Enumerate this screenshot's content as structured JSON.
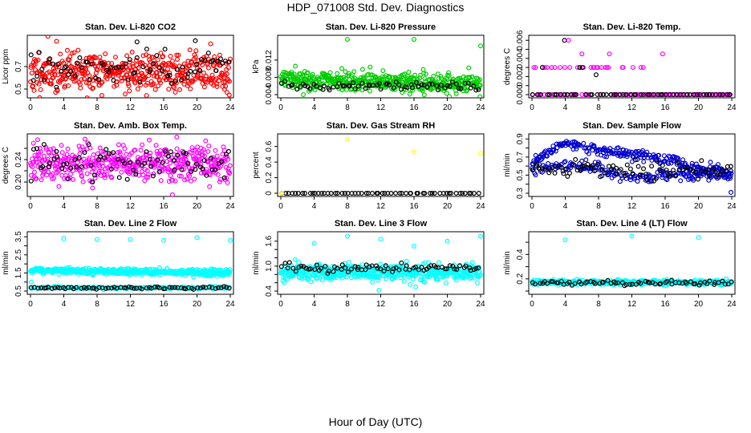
{
  "figure": {
    "title": "HDP_071008  Std. Dev. Diagnostics",
    "xlabel": "Hour of Day (UTC)"
  },
  "chart_data": [
    {
      "type": "scatter",
      "title": "Stan. Dev. Li-820 CO2",
      "ylabel": "Licor ppm",
      "xlim": [
        0,
        24
      ],
      "ylim": [
        0.45,
        0.95
      ],
      "xticks": [
        0,
        4,
        8,
        12,
        16,
        20,
        24
      ],
      "yticks": [
        0.5,
        0.7
      ],
      "grid": false,
      "colors": {
        "primary": "#ff0000",
        "secondary": "#000000"
      },
      "series": [
        {
          "color": "#ff0000",
          "points": {
            "n": 460,
            "x_range": [
              0,
              24
            ],
            "y_center": 0.65,
            "y_spread": 0.09,
            "seed": 11
          }
        },
        {
          "color": "#000000",
          "points": {
            "n": 75,
            "x_range": [
              0,
              24
            ],
            "y_center": 0.68,
            "y_spread": 0.09,
            "seed": 12
          }
        }
      ],
      "extra_points": [
        {
          "x": 12.8,
          "y": 0.92,
          "color": "#000000"
        },
        {
          "x": 19.8,
          "y": 0.93,
          "color": "#000000"
        },
        {
          "x": 23.6,
          "y": 0.47,
          "color": "#ff0000"
        }
      ]
    },
    {
      "type": "scatter",
      "title": "Stan. Dev. Li-820 Pressure",
      "ylabel": "kPa",
      "xlim": [
        0,
        24
      ],
      "ylim": [
        0.004,
        0.017
      ],
      "xticks": [
        0,
        4,
        8,
        12,
        16,
        20,
        24
      ],
      "yticks": [
        0.004,
        0.008,
        0.012
      ],
      "grid": false,
      "colors": {
        "primary": "#00cd00",
        "secondary": "#000000"
      },
      "series": [
        {
          "color": "#00cd00",
          "points": {
            "n": 470,
            "x_range": [
              0,
              24
            ],
            "y_center": 0.0075,
            "y_spread": 0.0011,
            "trend": -4e-05,
            "seed": 21
          }
        },
        {
          "color": "#000000",
          "points": {
            "n": 70,
            "x_range": [
              0,
              24
            ],
            "y_center": 0.006,
            "y_spread": 0.0005,
            "seed": 22
          }
        }
      ],
      "extra_points": [
        {
          "x": 8.0,
          "y": 0.0168,
          "color": "#00cd00"
        },
        {
          "x": 16.0,
          "y": 0.0168,
          "color": "#00cd00"
        },
        {
          "x": 24.0,
          "y": 0.0153,
          "color": "#00cd00"
        }
      ]
    },
    {
      "type": "scatter",
      "title": "Stan. Dev. Li-820 Temp.",
      "ylabel": "degrees C",
      "xlim": [
        0,
        24
      ],
      "ylim": [
        0,
        0.0062
      ],
      "xticks": [
        0,
        4,
        8,
        12,
        16,
        20,
        24
      ],
      "yticks": [
        0.0,
        0.001,
        0.002,
        0.003,
        0.004,
        0.005,
        0.006
      ],
      "ytick_labels": [
        "0.000",
        "",
        "0.002",
        "",
        "0.004",
        "",
        "0.006"
      ],
      "grid": false,
      "colors": {
        "primary": "#ff00ff",
        "secondary": "#000000"
      },
      "series": [
        {
          "color": "#ff00ff",
          "points": {
            "n": 110,
            "x_range": [
              0,
              24
            ],
            "y_levels": [
              0,
              0.003
            ],
            "level_weights": [
              0.6,
              0.4
            ],
            "x_max_nonzero": 14,
            "seed": 31
          }
        },
        {
          "color": "#000000",
          "points": {
            "n": 60,
            "x_range": [
              0,
              24
            ],
            "y_levels": [
              0,
              0.003
            ],
            "level_weights": [
              0.88,
              0.12
            ],
            "x_max_nonzero": 10,
            "seed": 32
          }
        }
      ],
      "extra_points": [
        {
          "x": 3.9,
          "y": 0.006,
          "color": "#000000"
        },
        {
          "x": 4.4,
          "y": 0.006,
          "color": "#ff00ff"
        },
        {
          "x": 6.0,
          "y": 0.0045,
          "color": "#ff00ff"
        },
        {
          "x": 9.3,
          "y": 0.0045,
          "color": "#ff00ff"
        },
        {
          "x": 15.7,
          "y": 0.0045,
          "color": "#ff00ff"
        },
        {
          "x": 7.7,
          "y": 0.0022,
          "color": "#000000"
        }
      ]
    },
    {
      "type": "scatter",
      "title": "Stan. Dev. Amb. Box Temp.",
      "ylabel": "degrees C",
      "xlim": [
        0,
        24
      ],
      "ylim": [
        0.18,
        0.28
      ],
      "xticks": [
        0,
        4,
        8,
        12,
        16,
        20,
        24
      ],
      "yticks": [
        0.2,
        0.22,
        0.24,
        0.26
      ],
      "ytick_labels": [
        "0.20",
        "",
        "0.24",
        ""
      ],
      "grid": false,
      "colors": {
        "primary": "#ff00ff",
        "secondary": "#000000"
      },
      "series": [
        {
          "color": "#ff00ff",
          "points": {
            "n": 460,
            "x_range": [
              0,
              24
            ],
            "y_center": 0.232,
            "y_spread": 0.017,
            "seed": 41
          }
        },
        {
          "color": "#000000",
          "points": {
            "n": 75,
            "x_range": [
              0,
              24
            ],
            "y_center": 0.235,
            "y_spread": 0.017,
            "seed": 42
          }
        }
      ],
      "extra_points": []
    },
    {
      "type": "scatter",
      "title": "Stan. Dev. Gas Stream RH",
      "ylabel": "percent",
      "xlim": [
        0,
        24
      ],
      "ylim": [
        0,
        0.72
      ],
      "xticks": [
        0,
        4,
        8,
        12,
        16,
        20,
        24
      ],
      "yticks": [
        0.0,
        0.2,
        0.4,
        0.6
      ],
      "grid": false,
      "colors": {
        "primary": "#ffff00",
        "secondary": "#000000"
      },
      "series": [
        {
          "color": "#000000",
          "points": {
            "n": 60,
            "x_range": [
              0,
              24
            ],
            "y_center": 0.0,
            "y_spread": 0.0,
            "seed": 51
          }
        }
      ],
      "extra_points": [
        {
          "x": 0.1,
          "y": 0.0,
          "color": "#ffff00"
        },
        {
          "x": 8.0,
          "y": 0.69,
          "color": "#ffff00"
        },
        {
          "x": 16.0,
          "y": 0.53,
          "color": "#ffff00"
        },
        {
          "x": 24.0,
          "y": 0.51,
          "color": "#ffff00"
        }
      ]
    },
    {
      "type": "scatter",
      "title": "Stan. Dev. Sample Flow",
      "ylabel": "ml/min",
      "xlim": [
        0,
        24
      ],
      "ylim": [
        0.3,
        0.92
      ],
      "xticks": [
        0,
        4,
        8,
        12,
        16,
        20,
        24
      ],
      "yticks": [
        0.3,
        0.4,
        0.5,
        0.6,
        0.7,
        0.8,
        0.9
      ],
      "ytick_labels": [
        "0.3",
        "",
        "0.5",
        "",
        "0.7",
        "",
        "0.9"
      ],
      "grid": false,
      "colors": {
        "primary": "#0000cd",
        "secondary": "#000000"
      },
      "series": [
        {
          "color": "#0000cd",
          "points": {
            "n": 430,
            "x_range": [
              0,
              24
            ],
            "y_band_upper": [
              [
                0,
                0.65
              ],
              [
                4,
                0.86
              ],
              [
                8,
                0.78
              ],
              [
                12,
                0.72
              ],
              [
                16,
                0.68
              ],
              [
                20,
                0.58
              ],
              [
                24,
                0.55
              ]
            ],
            "y_band_lower": [
              [
                0,
                0.55
              ],
              [
                4,
                0.62
              ],
              [
                8,
                0.58
              ],
              [
                12,
                0.45
              ],
              [
                16,
                0.5
              ],
              [
                20,
                0.5
              ],
              [
                24,
                0.48
              ]
            ],
            "seed": 61
          }
        },
        {
          "color": "#000000",
          "points": {
            "n": 80,
            "x_range": [
              0,
              24
            ],
            "y_center": 0.56,
            "y_spread": 0.05,
            "seed": 62
          }
        }
      ],
      "extra_points": [
        {
          "x": 23.9,
          "y": 0.31,
          "color": "#0000cd"
        }
      ]
    },
    {
      "type": "scatter",
      "title": "Stan. Dev. Line 2 Flow",
      "ylabel": "ml/min",
      "xlim": [
        0,
        24
      ],
      "ylim": [
        0.5,
        3.6
      ],
      "xticks": [
        0,
        4,
        8,
        12,
        16,
        20,
        24
      ],
      "yticks": [
        0.5,
        1.0,
        1.5,
        2.0,
        2.5,
        3.0,
        3.5
      ],
      "ytick_labels": [
        "0.5",
        "",
        "1.5",
        "",
        "2.5",
        "",
        "3.5"
      ],
      "grid": false,
      "colors": {
        "primary": "#00ffff",
        "secondary": "#000000"
      },
      "series": [
        {
          "color": "#00ffff",
          "points": {
            "n": 480,
            "x_range": [
              0,
              24
            ],
            "y_center": 1.65,
            "y_spread": 0.08,
            "trend": -0.006,
            "seed": 71
          }
        },
        {
          "color": "#00ffff",
          "points": {
            "n": 140,
            "x_range": [
              0,
              24
            ],
            "y_center": 0.68,
            "y_spread": 0.03,
            "seed": 72
          }
        },
        {
          "color": "#000000",
          "points": {
            "n": 70,
            "x_range": [
              0,
              24
            ],
            "y_center": 0.68,
            "y_spread": 0.03,
            "seed": 73
          }
        }
      ],
      "extra_points": [
        {
          "x": 0.1,
          "y": 1.0,
          "color": "#00ffff"
        },
        {
          "x": 4.0,
          "y": 3.4,
          "color": "#00ffff"
        },
        {
          "x": 8.0,
          "y": 3.35,
          "color": "#00ffff"
        },
        {
          "x": 12.0,
          "y": 3.35,
          "color": "#00ffff"
        },
        {
          "x": 16.0,
          "y": 3.3,
          "color": "#00ffff"
        },
        {
          "x": 20.0,
          "y": 3.45,
          "color": "#00ffff"
        },
        {
          "x": 24.0,
          "y": 3.3,
          "color": "#00ffff"
        }
      ]
    },
    {
      "type": "scatter",
      "title": "Stan. Dev. Line 3 Flow",
      "ylabel": "ml/min",
      "xlim": [
        0,
        24
      ],
      "ylim": [
        0.4,
        1.75
      ],
      "xticks": [
        0,
        4,
        8,
        12,
        16,
        20,
        24
      ],
      "yticks": [
        0.4,
        0.6,
        0.8,
        1.0,
        1.2,
        1.4,
        1.6
      ],
      "ytick_labels": [
        "0.4",
        "",
        "",
        "1.0",
        "",
        "",
        "1.6"
      ],
      "grid": false,
      "colors": {
        "primary": "#00ffff",
        "secondary": "#000000"
      },
      "series": [
        {
          "color": "#00ffff",
          "points": {
            "n": 480,
            "x_range": [
              0,
              24
            ],
            "y_center": 0.85,
            "y_spread": 0.1,
            "seed": 81
          }
        },
        {
          "color": "#000000",
          "points": {
            "n": 75,
            "x_range": [
              0,
              24
            ],
            "y_center": 0.95,
            "y_spread": 0.05,
            "seed": 82
          }
        }
      ],
      "extra_points": [
        {
          "x": 4.0,
          "y": 1.55,
          "color": "#00ffff"
        },
        {
          "x": 8.0,
          "y": 1.72,
          "color": "#00ffff"
        },
        {
          "x": 12.0,
          "y": 1.65,
          "color": "#00ffff"
        },
        {
          "x": 16.0,
          "y": 1.48,
          "color": "#00ffff"
        },
        {
          "x": 20.0,
          "y": 1.6,
          "color": "#00ffff"
        },
        {
          "x": 24.0,
          "y": 1.72,
          "color": "#00ffff"
        },
        {
          "x": 11.8,
          "y": 0.42,
          "color": "#00ffff"
        },
        {
          "x": 16.2,
          "y": 0.5,
          "color": "#00ffff"
        }
      ]
    },
    {
      "type": "scatter",
      "title": "Stan. Dev. Line 4 (LT) Flow",
      "ylabel": "ml/min",
      "xlim": [
        0,
        24
      ],
      "ylim": [
        0.1,
        0.56
      ],
      "xticks": [
        0,
        4,
        8,
        12,
        16,
        20,
        24
      ],
      "yticks": [
        0.1,
        0.2,
        0.3,
        0.4,
        0.5
      ],
      "ytick_labels": [
        "",
        "0.2",
        "",
        "0.4",
        ""
      ],
      "grid": false,
      "colors": {
        "primary": "#00ffff",
        "secondary": "#000000"
      },
      "series": [
        {
          "color": "#00ffff",
          "points": {
            "n": 380,
            "x_range": [
              0,
              24
            ],
            "y_center": 0.17,
            "y_spread": 0.01,
            "seed": 91
          }
        },
        {
          "color": "#000000",
          "points": {
            "n": 70,
            "x_range": [
              0,
              24
            ],
            "y_center": 0.165,
            "y_spread": 0.01,
            "seed": 92
          }
        }
      ],
      "extra_points": [
        {
          "x": 4.0,
          "y": 0.52,
          "color": "#00ffff"
        },
        {
          "x": 12.0,
          "y": 0.55,
          "color": "#00ffff"
        },
        {
          "x": 20.0,
          "y": 0.54,
          "color": "#00ffff"
        }
      ]
    }
  ]
}
